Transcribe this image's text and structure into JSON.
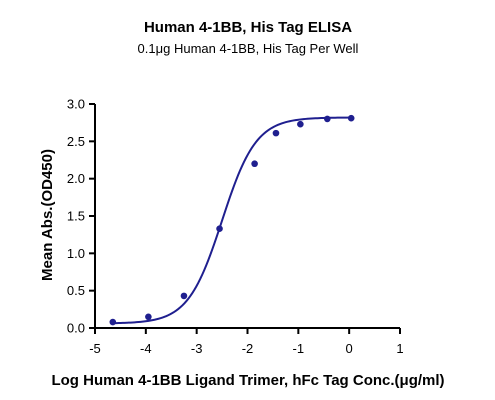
{
  "chart_data": {
    "type": "scatter",
    "title": "Human 4-1BB, His Tag ELISA",
    "subtitle": "0.1μg Human 4-1BB, His Tag Per Well",
    "xlabel": "Log Human 4-1BB Ligand Trimer, hFc Tag Conc.(μg/ml)",
    "ylabel": "Mean Abs.(OD450)",
    "xlim": [
      -5,
      1
    ],
    "ylim": [
      0,
      3.0
    ],
    "xticks": [
      "-5",
      "-4",
      "-3",
      "-2",
      "-1",
      "0",
      "1"
    ],
    "yticks": [
      "0.0",
      "0.5",
      "1.0",
      "1.5",
      "2.0",
      "2.5",
      "3.0"
    ],
    "grid": false,
    "series": [
      {
        "points": [
          {
            "x": -4.65,
            "y": 0.08
          },
          {
            "x": -3.95,
            "y": 0.15
          },
          {
            "x": -3.25,
            "y": 0.43
          },
          {
            "x": -2.55,
            "y": 1.33
          },
          {
            "x": -1.86,
            "y": 2.2
          },
          {
            "x": -1.44,
            "y": 2.61
          },
          {
            "x": -0.96,
            "y": 2.73
          },
          {
            "x": -0.43,
            "y": 2.8
          },
          {
            "x": 0.04,
            "y": 2.81
          }
        ],
        "fit": {
          "model": "4PL",
          "bottom": 0.06,
          "top": 2.82,
          "log_ec50": -2.5,
          "hill": 1.3
        }
      }
    ],
    "color": "#1f1f8f"
  }
}
